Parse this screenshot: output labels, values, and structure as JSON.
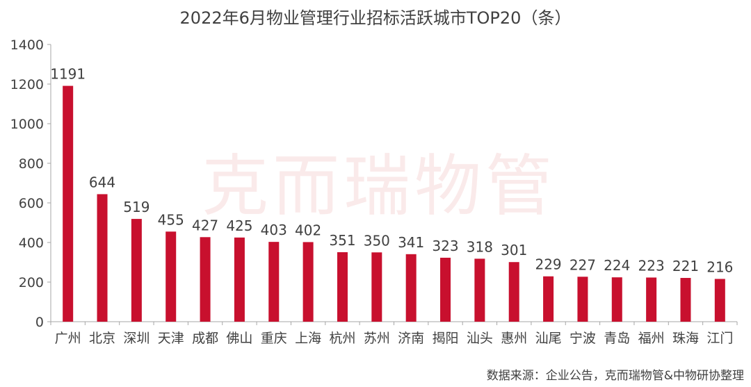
{
  "chart_data": {
    "type": "bar",
    "title": "2022年6月物业管理行业招标活跃城市TOP20（条）",
    "categories": [
      "广州",
      "北京",
      "深圳",
      "天津",
      "成都",
      "佛山",
      "重庆",
      "上海",
      "杭州",
      "苏州",
      "济南",
      "揭阳",
      "汕头",
      "惠州",
      "汕尾",
      "宁波",
      "青岛",
      "福州",
      "珠海",
      "江门"
    ],
    "values": [
      1191,
      644,
      519,
      455,
      427,
      425,
      403,
      402,
      351,
      350,
      341,
      323,
      318,
      301,
      229,
      227,
      224,
      223,
      221,
      216
    ],
    "ylim": [
      0,
      1400
    ],
    "yticks": [
      0,
      200,
      400,
      600,
      800,
      1000,
      1200,
      1400
    ],
    "xlabel": "",
    "ylabel": "",
    "grid": false,
    "legend": "none",
    "data_labels": true,
    "bar_color": "#c8102e",
    "axis_color": "#a6a6a6",
    "text_color": "#404040"
  },
  "watermark": "克而瑞物管",
  "source": "数据来源：企业公告，克而瑞物管&中物研协整理"
}
